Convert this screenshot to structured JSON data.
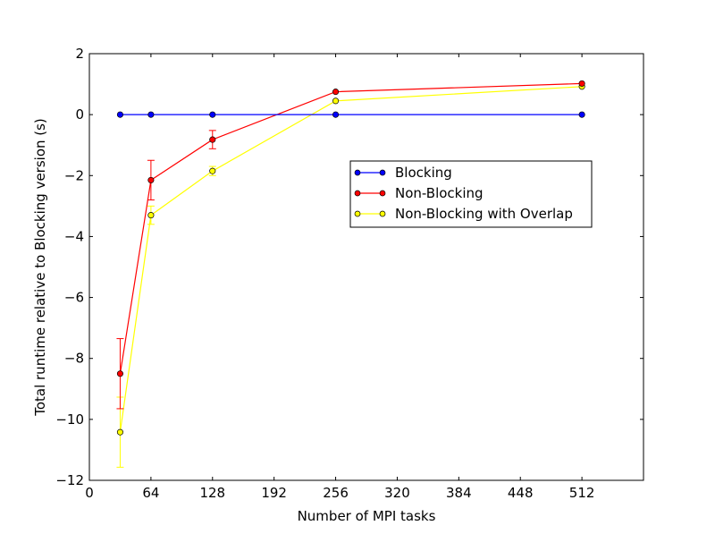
{
  "chart_data": {
    "type": "line",
    "xlabel": "Number of MPI tasks",
    "ylabel": "Total runtime relative to Blocking version (s)",
    "xlim": [
      0,
      576
    ],
    "ylim": [
      -12,
      2
    ],
    "xticks": [
      0,
      64,
      128,
      192,
      256,
      320,
      384,
      448,
      512
    ],
    "yticks": [
      -12,
      -10,
      -8,
      -6,
      -4,
      -2,
      0,
      2
    ],
    "x": [
      32,
      64,
      128,
      256,
      512
    ],
    "legend_position": "center-right",
    "series": [
      {
        "name": "Blocking",
        "color": "#0000ff",
        "values": [
          0,
          0,
          0,
          0,
          0
        ],
        "errors": [
          0,
          0,
          0,
          0,
          0
        ]
      },
      {
        "name": "Non-Blocking",
        "color": "#ff0000",
        "values": [
          -8.5,
          -2.15,
          -0.82,
          0.75,
          1.02
        ],
        "errors": [
          1.15,
          0.65,
          0.3,
          0,
          0
        ]
      },
      {
        "name": "Non-Blocking with Overlap",
        "color": "#ffff00",
        "values": [
          -10.42,
          -3.3,
          -1.85,
          0.45,
          0.92
        ],
        "errors": [
          1.15,
          0.3,
          0.15,
          0,
          0
        ]
      }
    ]
  }
}
